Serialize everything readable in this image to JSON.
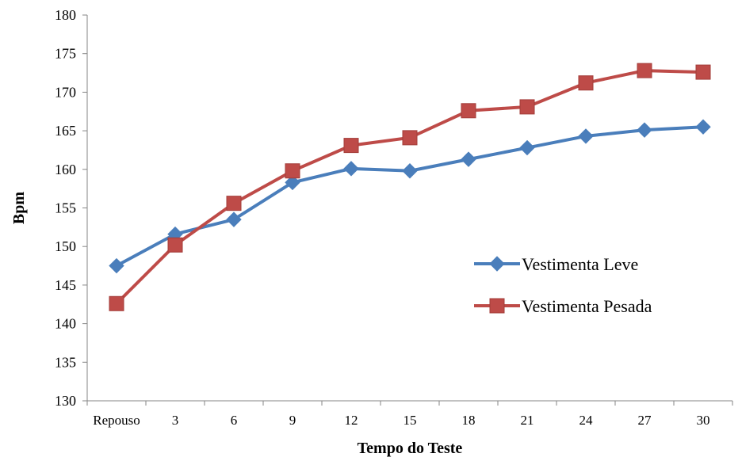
{
  "chart_data": {
    "type": "line",
    "title": "",
    "xlabel": "Tempo do Teste",
    "ylabel": "Bpm",
    "categories": [
      "Repouso",
      "3",
      "6",
      "9",
      "12",
      "15",
      "18",
      "21",
      "24",
      "27",
      "30"
    ],
    "ylim": [
      130,
      180
    ],
    "yticks": [
      130,
      135,
      140,
      145,
      150,
      155,
      160,
      165,
      170,
      175,
      180
    ],
    "grid": false,
    "legend_position": "right",
    "series": [
      {
        "name": "Vestimenta Leve",
        "color": "#4a7ebb",
        "marker": "diamond",
        "values": [
          147.5,
          151.6,
          153.5,
          158.3,
          160.1,
          159.8,
          161.3,
          162.8,
          164.3,
          165.1,
          165.5
        ]
      },
      {
        "name": "Vestimenta Pesada",
        "color": "#be4b48",
        "marker": "square",
        "values": [
          142.6,
          150.2,
          155.6,
          159.8,
          163.1,
          164.1,
          167.6,
          168.1,
          171.2,
          172.8,
          172.6
        ]
      }
    ]
  }
}
